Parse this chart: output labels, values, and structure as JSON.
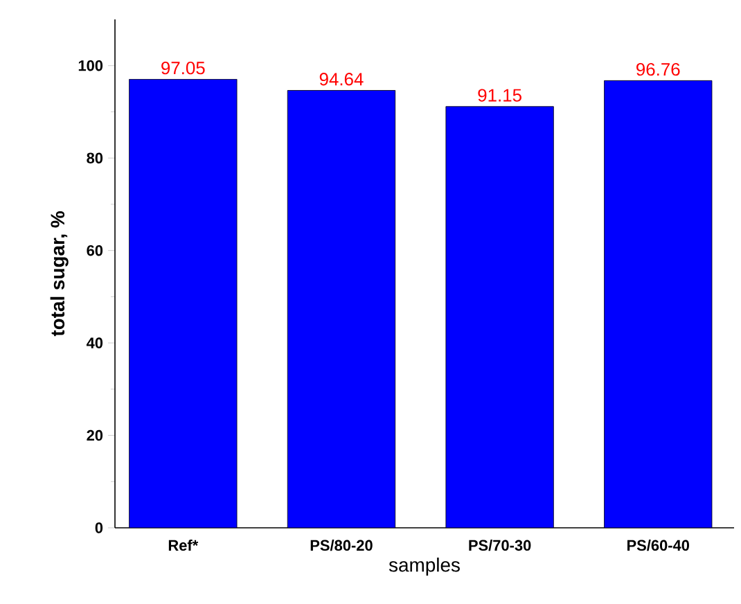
{
  "chart_data": {
    "type": "bar",
    "xlabel": "samples",
    "ylabel": "total sugar, %",
    "categories": [
      "Ref*",
      "PS/80-20",
      "PS/70-30",
      "PS/60-40"
    ],
    "values": [
      97.05,
      94.64,
      91.15,
      96.76
    ],
    "color": "#0000ff",
    "ylim": [
      0,
      110
    ],
    "yticks": [
      0,
      20,
      40,
      60,
      80,
      100
    ],
    "data_labels": true,
    "grid": false
  }
}
